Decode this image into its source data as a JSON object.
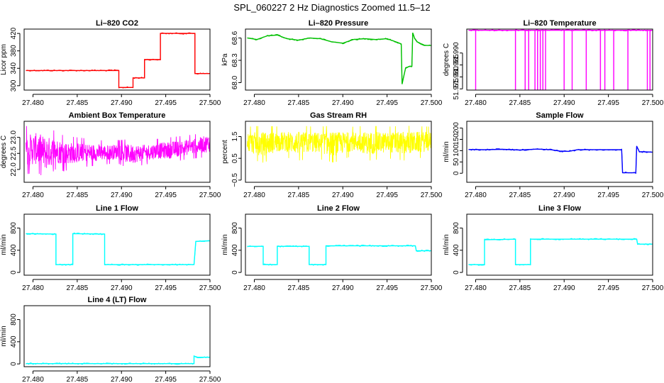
{
  "figure": {
    "title": "SPL_060227  2 Hz Diagnostics Zoomed 11.5–12"
  },
  "chart_data": [
    {
      "type": "line",
      "title": "Li–820 CO2",
      "ylabel": "Licor ppm",
      "xlim": [
        27.479,
        27.5
      ],
      "ylim": [
        290,
        430
      ],
      "xticks": [
        27.48,
        27.485,
        27.49,
        27.495,
        27.5
      ],
      "xtick_labels": [
        "27.480",
        "27.485",
        "27.490",
        "27.495",
        "27.500"
      ],
      "yticks": [
        300,
        340,
        380,
        420
      ],
      "ytick_labels": [
        "300",
        "340",
        "380",
        "420"
      ],
      "color": "#ff0000",
      "series": [
        {
          "x": [
            27.4792,
            27.4897,
            27.4897,
            27.4913,
            27.4913,
            27.4926,
            27.4926,
            27.4944,
            27.4944,
            27.4983,
            27.4983,
            27.5
          ],
          "y": [
            335,
            335,
            296,
            296,
            318,
            318,
            360,
            360,
            420,
            420,
            328,
            328
          ]
        }
      ]
    },
    {
      "type": "line",
      "title": "Li–820 Pressure",
      "ylabel": "kPa",
      "xlim": [
        27.479,
        27.5
      ],
      "ylim": [
        67.9,
        68.72
      ],
      "xticks": [
        27.48,
        27.485,
        27.49,
        27.495,
        27.5
      ],
      "xtick_labels": [
        "27.480",
        "27.485",
        "27.490",
        "27.495",
        "27.500"
      ],
      "yticks": [
        68.0,
        68.3,
        68.6
      ],
      "ytick_labels": [
        "68.0",
        "68.3",
        "68.6"
      ],
      "color": "#00c000",
      "series": [
        {
          "x": [
            27.4792,
            27.4803,
            27.4815,
            27.4826,
            27.4837,
            27.485,
            27.4862,
            27.4875,
            27.4887,
            27.49,
            27.4912,
            27.4925,
            27.4937,
            27.495,
            27.4962,
            27.4966,
            27.4967,
            27.4971,
            27.4976,
            27.4978,
            27.4979,
            27.4981,
            27.4984,
            27.4988,
            27.4992,
            27.5
          ],
          "y": [
            68.6,
            68.58,
            68.63,
            68.64,
            68.59,
            68.57,
            68.6,
            68.59,
            68.55,
            68.53,
            68.58,
            68.59,
            68.58,
            68.59,
            68.54,
            68.52,
            67.98,
            68.2,
            68.22,
            68.22,
            68.67,
            68.6,
            68.55,
            68.52,
            68.5,
            68.5
          ]
        }
      ]
    },
    {
      "type": "line",
      "title": "Li–820 Temperature",
      "ylabel": "degrees C",
      "xlim": [
        27.479,
        27.5
      ],
      "ylim": [
        51.9745,
        52.0
      ],
      "xticks": [
        27.48,
        27.485,
        27.49,
        27.495,
        27.5
      ],
      "xtick_labels": [
        "27.480",
        "27.485",
        "27.490",
        "27.495",
        "27.500"
      ],
      "yticks": [
        51.975,
        51.98,
        51.985,
        51.99
      ],
      "ytick_labels": [
        "51.975",
        "51.980",
        "51.985",
        "51.990"
      ],
      "color": "#ff00ff",
      "series": [
        {
          "x": [
            27.4792,
            27.48,
            27.48,
            27.48,
            27.4845,
            27.4845,
            27.4845,
            27.4856,
            27.4856,
            27.4856,
            27.486,
            27.486,
            27.486,
            27.4867,
            27.4867,
            27.4867,
            27.487,
            27.487,
            27.487,
            27.4873,
            27.4873,
            27.4873,
            27.4876,
            27.4876,
            27.4876,
            27.4879,
            27.4879,
            27.4879,
            27.49,
            27.49,
            27.49,
            27.4909,
            27.4909,
            27.4909,
            27.4925,
            27.4925,
            27.4925,
            27.4941,
            27.4941,
            27.4941,
            27.4946,
            27.4946,
            27.4946,
            27.4956,
            27.4956,
            27.4956,
            27.4972,
            27.4972,
            27.4972,
            27.4994,
            27.4994,
            27.4994,
            27.4997,
            27.4997,
            27.4997,
            27.5
          ],
          "y": [
            51.9995,
            51.9995,
            51.9745,
            51.9995,
            51.9995,
            51.9745,
            51.9995,
            51.9995,
            51.9745,
            51.9995,
            51.9995,
            51.9745,
            51.9995,
            51.9995,
            51.9745,
            51.9995,
            51.9995,
            51.9745,
            51.9995,
            51.9995,
            51.9745,
            51.9995,
            51.9995,
            51.9745,
            51.9995,
            51.9995,
            51.9745,
            51.9995,
            51.9995,
            51.9745,
            51.9995,
            51.9995,
            51.9745,
            51.9995,
            51.9995,
            51.9745,
            51.9995,
            51.9995,
            51.9745,
            51.9995,
            51.9995,
            51.9745,
            51.9995,
            51.9995,
            51.9745,
            51.9995,
            51.9995,
            51.9745,
            51.9995,
            51.9995,
            51.9745,
            51.9995,
            51.9995,
            51.9745,
            51.9995,
            51.9995
          ]
        }
      ]
    },
    {
      "type": "line",
      "title": "Ambient Box Temperature",
      "ylabel": "degrees C",
      "xlim": [
        27.479,
        27.5
      ],
      "ylim": [
        21.6,
        23.5
      ],
      "xticks": [
        27.48,
        27.485,
        27.49,
        27.495,
        27.5
      ],
      "xtick_labels": [
        "27.480",
        "27.485",
        "27.490",
        "27.495",
        "27.500"
      ],
      "yticks": [
        22.0,
        22.5,
        23.0
      ],
      "ytick_labels": [
        "22.0",
        "22.5",
        "23.0"
      ],
      "color": "#ff00ff",
      "noise_band": [
        {
          "x": 27.4792,
          "low": 21.85,
          "high": 23.35
        },
        {
          "x": 27.4805,
          "low": 21.9,
          "high": 23.4
        },
        {
          "x": 27.4815,
          "low": 21.7,
          "high": 23.3
        },
        {
          "x": 27.4825,
          "low": 22.0,
          "high": 23.2
        },
        {
          "x": 27.4835,
          "low": 21.95,
          "high": 23.05
        },
        {
          "x": 27.485,
          "low": 22.05,
          "high": 23.0
        },
        {
          "x": 27.4865,
          "low": 22.1,
          "high": 22.95
        },
        {
          "x": 27.488,
          "low": 22.15,
          "high": 22.9
        },
        {
          "x": 27.4895,
          "low": 22.2,
          "high": 22.9
        },
        {
          "x": 27.491,
          "low": 22.0,
          "high": 22.95
        },
        {
          "x": 27.4925,
          "low": 22.15,
          "high": 22.9
        },
        {
          "x": 27.494,
          "low": 22.2,
          "high": 22.95
        },
        {
          "x": 27.4955,
          "low": 22.2,
          "high": 23.0
        },
        {
          "x": 27.497,
          "low": 22.3,
          "high": 23.05
        },
        {
          "x": 27.4985,
          "low": 22.35,
          "high": 23.1
        },
        {
          "x": 27.5,
          "low": 22.4,
          "high": 23.25
        }
      ]
    },
    {
      "type": "line",
      "title": "Gas Stream RH",
      "ylabel": "percent",
      "xlim": [
        27.479,
        27.5
      ],
      "ylim": [
        -0.6,
        2.2
      ],
      "xticks": [
        27.48,
        27.485,
        27.49,
        27.495,
        27.5
      ],
      "xtick_labels": [
        "27.480",
        "27.485",
        "27.490",
        "27.495",
        "27.500"
      ],
      "yticks": [
        -0.5,
        0.5,
        1.5
      ],
      "ytick_labels": [
        "−0.5",
        "0.5",
        "1.5"
      ],
      "color": "#ffff00",
      "noise_band": [
        {
          "x": 27.4792,
          "low": 0.5,
          "high": 1.95
        },
        {
          "x": 27.481,
          "low": 0.3,
          "high": 2.0
        },
        {
          "x": 27.483,
          "low": 0.6,
          "high": 1.95
        },
        {
          "x": 27.485,
          "low": 0.4,
          "high": 2.0
        },
        {
          "x": 27.487,
          "low": 0.5,
          "high": 1.95
        },
        {
          "x": 27.489,
          "low": 0.3,
          "high": 2.0
        },
        {
          "x": 27.491,
          "low": 0.6,
          "high": 1.95
        },
        {
          "x": 27.493,
          "low": 0.4,
          "high": 2.0
        },
        {
          "x": 27.495,
          "low": 0.5,
          "high": 1.95
        },
        {
          "x": 27.497,
          "low": 0.4,
          "high": 2.0
        },
        {
          "x": 27.5,
          "low": 0.6,
          "high": 1.95
        }
      ]
    },
    {
      "type": "line",
      "title": "Sample Flow",
      "ylabel": "ml/min",
      "xlim": [
        27.479,
        27.5
      ],
      "ylim": [
        -40,
        230
      ],
      "xticks": [
        27.48,
        27.485,
        27.49,
        27.495,
        27.5
      ],
      "xtick_labels": [
        "27.480",
        "27.485",
        "27.490",
        "27.495",
        "27.500"
      ],
      "yticks": [
        0,
        50,
        100,
        150,
        200
      ],
      "ytick_labels": [
        "0",
        "50",
        "100",
        "150",
        "200"
      ],
      "color": "#0000ff",
      "series": [
        {
          "x": [
            27.4792,
            27.481,
            27.483,
            27.485,
            27.487,
            27.4885,
            27.4895,
            27.4905,
            27.4915,
            27.493,
            27.495,
            27.4965,
            27.4966,
            27.4981,
            27.4982,
            27.4985,
            27.499,
            27.5
          ],
          "y": [
            105,
            104,
            106,
            103,
            107,
            104,
            98,
            97,
            104,
            104,
            104,
            104,
            2,
            2,
            120,
            95,
            95,
            93
          ]
        }
      ]
    },
    {
      "type": "line",
      "title": "Line 1 Flow",
      "ylabel": "ml/min",
      "xlim": [
        27.479,
        27.5
      ],
      "ylim": [
        -50,
        1050
      ],
      "xticks": [
        27.48,
        27.485,
        27.49,
        27.495,
        27.5
      ],
      "xtick_labels": [
        "27.480",
        "27.485",
        "27.490",
        "27.495",
        "27.500"
      ],
      "yticks": [
        0,
        400,
        800
      ],
      "ytick_labels": [
        "0",
        "400",
        "800"
      ],
      "color": "#00ffff",
      "series": [
        {
          "x": [
            27.4792,
            27.4826,
            27.4826,
            27.4845,
            27.4845,
            27.4881,
            27.4881,
            27.4982,
            27.4984,
            27.5
          ],
          "y": [
            700,
            690,
            140,
            140,
            700,
            690,
            140,
            140,
            560,
            570
          ]
        }
      ]
    },
    {
      "type": "line",
      "title": "Line 2 Flow",
      "ylabel": "ml/min",
      "xlim": [
        27.479,
        27.5
      ],
      "ylim": [
        -50,
        1050
      ],
      "xticks": [
        27.48,
        27.485,
        27.49,
        27.495,
        27.5
      ],
      "xtick_labels": [
        "27.480",
        "27.485",
        "27.490",
        "27.495",
        "27.500"
      ],
      "yticks": [
        0,
        400,
        800
      ],
      "ytick_labels": [
        "0",
        "400",
        "800"
      ],
      "color": "#00ffff",
      "series": [
        {
          "x": [
            27.4792,
            27.481,
            27.481,
            27.4826,
            27.4826,
            27.4862,
            27.4862,
            27.4881,
            27.4881,
            27.4982,
            27.4983,
            27.5
          ],
          "y": [
            470,
            470,
            140,
            140,
            470,
            470,
            140,
            140,
            480,
            480,
            390,
            390
          ]
        }
      ]
    },
    {
      "type": "line",
      "title": "Line 3 Flow",
      "ylabel": "ml/min",
      "xlim": [
        27.479,
        27.5
      ],
      "ylim": [
        -50,
        1050
      ],
      "xticks": [
        27.48,
        27.485,
        27.49,
        27.495,
        27.5
      ],
      "xtick_labels": [
        "27.480",
        "27.485",
        "27.490",
        "27.495",
        "27.500"
      ],
      "yticks": [
        0,
        400,
        800
      ],
      "ytick_labels": [
        "0",
        "400",
        "800"
      ],
      "color": "#00ffff",
      "series": [
        {
          "x": [
            27.4792,
            27.481,
            27.481,
            27.4845,
            27.4845,
            27.4862,
            27.4862,
            27.4982,
            27.4983,
            27.5
          ],
          "y": [
            140,
            140,
            590,
            600,
            140,
            140,
            600,
            600,
            510,
            510
          ]
        }
      ]
    },
    {
      "type": "line",
      "title": "Line 4 (LT) Flow",
      "ylabel": "ml/min",
      "xlim": [
        27.479,
        27.5
      ],
      "ylim": [
        -50,
        1050
      ],
      "xticks": [
        27.48,
        27.485,
        27.49,
        27.495,
        27.5
      ],
      "xtick_labels": [
        "27.480",
        "27.485",
        "27.490",
        "27.495",
        "27.500"
      ],
      "yticks": [
        0,
        400,
        800
      ],
      "ytick_labels": [
        "0",
        "400",
        "800"
      ],
      "color": "#00ffff",
      "series": [
        {
          "x": [
            27.4792,
            27.4982,
            27.4982,
            27.4986,
            27.5
          ],
          "y": [
            5,
            5,
            140,
            120,
            120
          ]
        }
      ]
    }
  ]
}
